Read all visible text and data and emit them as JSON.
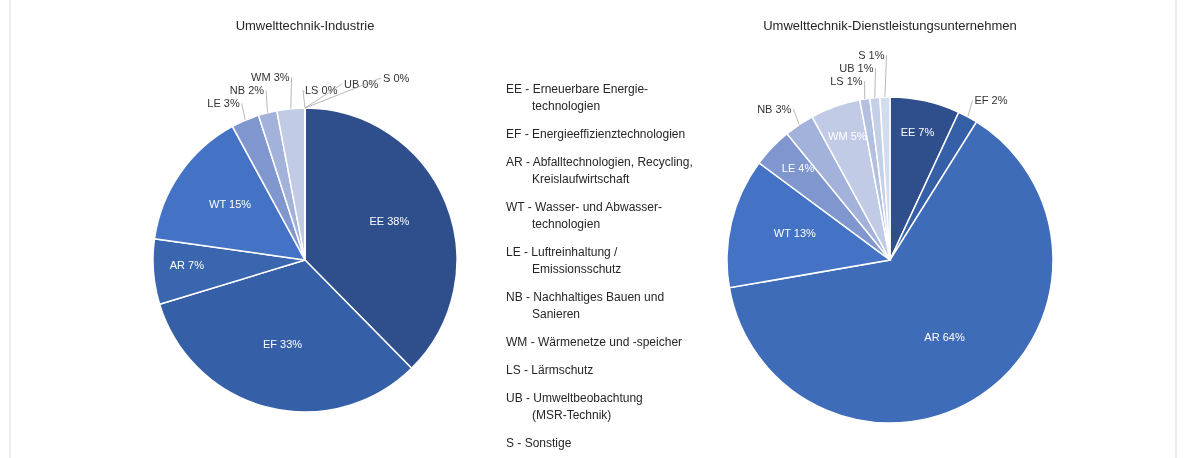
{
  "chart_data": [
    {
      "type": "pie",
      "title": "Umwelttechnik-Industrie",
      "categories": [
        "EE",
        "EF",
        "AR",
        "WT",
        "LE",
        "NB",
        "WM",
        "LS",
        "UB",
        "S"
      ],
      "values": [
        38,
        33,
        7,
        15,
        3,
        2,
        3,
        0,
        0,
        0
      ],
      "value_labels": [
        "38%",
        "33%",
        "7%",
        "15%",
        "3%",
        "2%",
        "3%",
        "0%",
        "0%",
        "0%"
      ],
      "colors": [
        "#2f4f8c",
        "#3560a8",
        "#3a66b0",
        "#4472c4",
        "#7f96cf",
        "#a3b2da",
        "#c1cbe5",
        "#b3c0e0",
        "#c5cfe8",
        "#d3dbee"
      ]
    },
    {
      "type": "other",
      "annotations": [
        "EE - Erneuerbare Energie-\ntechnologien",
        "EF - Energieeffizienztechnologien",
        "AR - Abfalltechnologien, Recycling,\nKreislaufwirtschaft",
        "WT - Wasser- und Abwasser-\ntechnologien",
        "LE - Luftreinhaltung /\nEmissionsschutz",
        "NB - Nachhaltiges Bauen und\nSanieren",
        "WM - Wärmenetze und -speicher",
        "LS - Lärmschutz",
        "UB - Umweltbeobachtung\n(MSR-Technik)",
        "S  -  Sonstige"
      ]
    },
    {
      "type": "pie",
      "title": "Umwelttechnik-Dienstleistungsunternehmen",
      "categories": [
        "EE",
        "EF",
        "AR",
        "WT",
        "LE",
        "NB",
        "WM",
        "LS",
        "UB",
        "S"
      ],
      "values": [
        7,
        2,
        64,
        13,
        4,
        3,
        5,
        1,
        1,
        1
      ],
      "value_labels": [
        "7%",
        "2%",
        "64%",
        "13%",
        "4%",
        "3%",
        "5%",
        "1%",
        "1%",
        "1%"
      ],
      "colors": [
        "#2f4f8c",
        "#3560a8",
        "#3f6cb8",
        "#4472c4",
        "#7f96cf",
        "#a3b2da",
        "#c1cbe5",
        "#b3c0e0",
        "#c5cfe8",
        "#d3dbee"
      ]
    }
  ]
}
